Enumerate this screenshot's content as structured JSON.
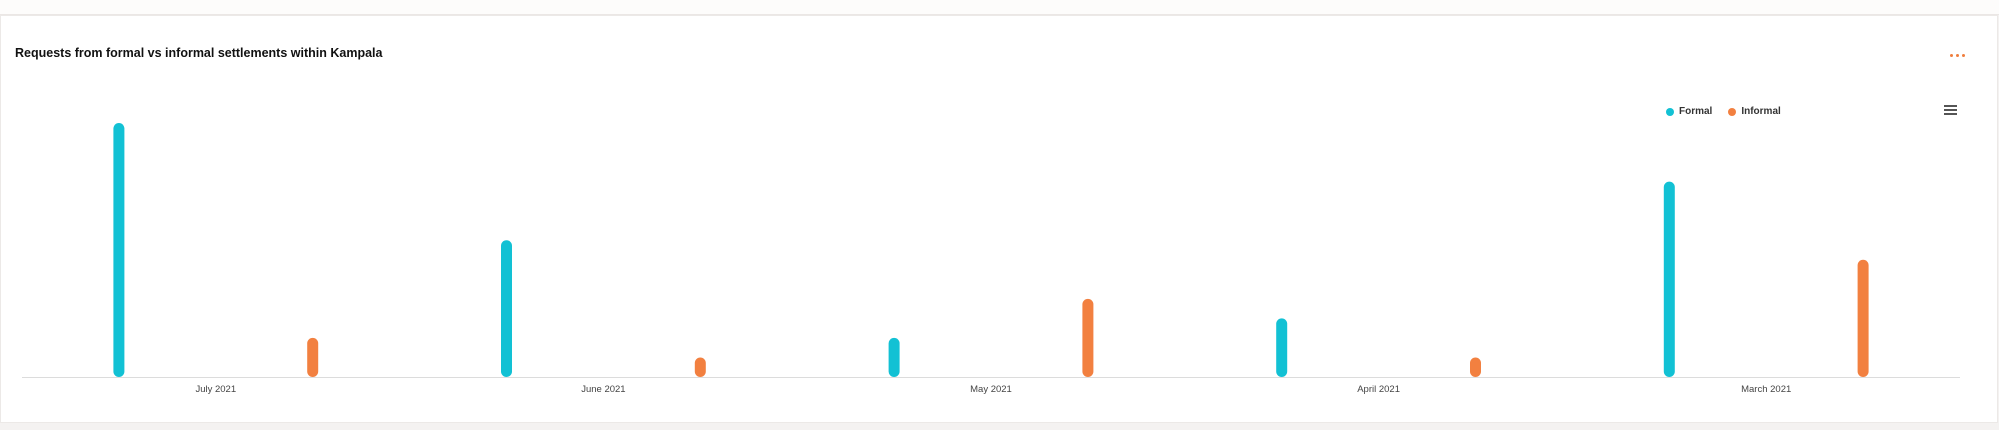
{
  "card": {
    "title": "Requests from formal vs informal settlements within Kampala",
    "menu_icon": "hamburger-menu-icon",
    "options_icon": "more-horizontal-icon",
    "options_color": "#f07e3e"
  },
  "chart_data": {
    "type": "bar",
    "title": "Requests from formal vs informal settlements within Kampala",
    "xlabel": "",
    "ylabel": "",
    "categories": [
      "July 2021",
      "June 2021",
      "May 2021",
      "April 2021",
      "March 2021"
    ],
    "series": [
      {
        "name": "Formal",
        "color": "#12c1d4",
        "values": [
          13,
          7,
          2,
          3,
          10
        ]
      },
      {
        "name": "Informal",
        "color": "#f28040",
        "values": [
          2,
          1,
          4,
          1,
          6
        ]
      }
    ],
    "ylim": [
      0,
      13
    ],
    "grid": false,
    "legend_position": "top-right"
  }
}
